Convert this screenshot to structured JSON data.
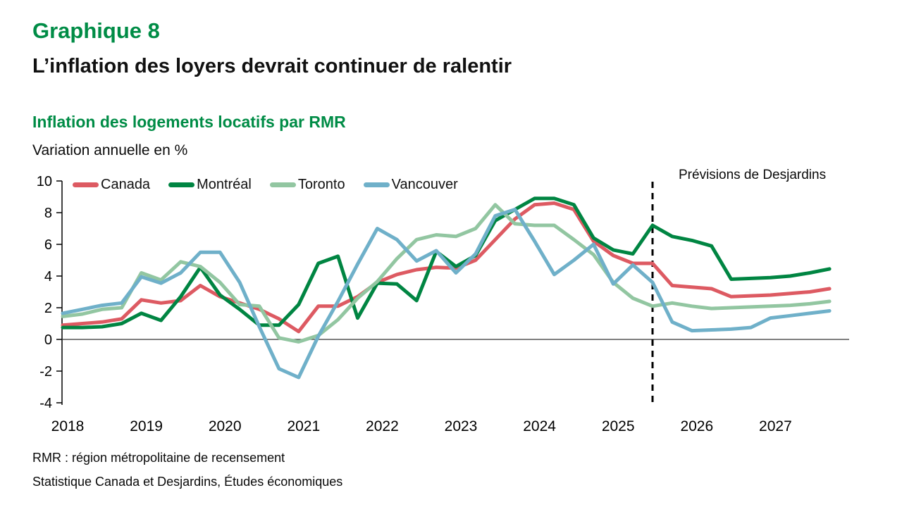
{
  "page": {
    "graph_number": "Graphique 8",
    "headline": "L’inflation des loyers devrait continuer de ralentir",
    "footnotes": [
      "RMR : région métropolitaine de recensement",
      "Statistique Canada et Desjardins, Études économiques"
    ]
  },
  "chart": {
    "title": "Inflation des logements locatifs par RMR",
    "unit_label": "Variation annuelle en %",
    "forecast_label": "Prévisions de Desjardins"
  },
  "colors": {
    "brand_green": "#008C46",
    "canada": "#DD5A62",
    "montreal": "#008542",
    "toronto": "#92C6A1",
    "vancouver": "#6FB0C9",
    "axis": "#000000"
  },
  "chart_data": {
    "type": "line",
    "title": "Inflation des logements locatifs par RMR",
    "ylabel": "Variation annuelle en %",
    "ylim": [
      -4,
      10
    ],
    "y_ticks": [
      10,
      8,
      6,
      4,
      2,
      0,
      -2,
      -4
    ],
    "x_years": [
      2018,
      2019,
      2020,
      2021,
      2022,
      2023,
      2024,
      2025,
      2026,
      2027
    ],
    "frequency": "quarterly",
    "grid": false,
    "legend_position": "top-left",
    "zero_line": true,
    "forecast_divider": {
      "position": "2025-Q3",
      "index": 30,
      "style": "dashed"
    },
    "series": [
      {
        "name": "Canada",
        "color": "#DD5A62",
        "values": [
          0.9,
          1.0,
          1.1,
          1.3,
          2.5,
          2.3,
          2.45,
          3.4,
          2.7,
          2.3,
          1.9,
          1.3,
          0.5,
          2.1,
          2.1,
          2.7,
          3.6,
          4.1,
          4.4,
          4.55,
          4.5,
          5.0,
          6.3,
          7.6,
          8.5,
          8.6,
          8.2,
          6.2,
          5.3,
          4.8,
          4.8,
          3.4,
          3.3,
          3.2,
          2.7,
          2.75,
          2.8,
          2.9,
          3.0,
          3.2
        ]
      },
      {
        "name": "Montréal",
        "color": "#008542",
        "values": [
          0.75,
          0.75,
          0.8,
          1.0,
          1.65,
          1.2,
          2.7,
          4.55,
          2.8,
          1.9,
          0.9,
          0.9,
          2.2,
          4.8,
          5.25,
          1.35,
          3.55,
          3.5,
          2.45,
          5.55,
          4.6,
          5.3,
          7.5,
          8.2,
          8.9,
          8.9,
          8.5,
          6.4,
          5.65,
          5.4,
          7.2,
          6.5,
          6.25,
          5.9,
          3.8,
          3.85,
          3.9,
          4.0,
          4.2,
          4.45
        ]
      },
      {
        "name": "Toronto",
        "color": "#92C6A1",
        "values": [
          1.45,
          1.6,
          1.9,
          2.0,
          4.2,
          3.75,
          4.9,
          4.6,
          3.6,
          2.2,
          2.1,
          0.1,
          -0.15,
          0.25,
          1.25,
          2.6,
          3.65,
          5.1,
          6.3,
          6.6,
          6.5,
          7.0,
          8.5,
          7.3,
          7.2,
          7.2,
          6.3,
          5.35,
          3.6,
          2.6,
          2.1,
          2.3,
          2.1,
          1.95,
          2.0,
          2.05,
          2.1,
          2.15,
          2.25,
          2.4
        ]
      },
      {
        "name": "Vancouver",
        "color": "#6FB0C9",
        "values": [
          1.65,
          1.9,
          2.15,
          2.3,
          3.95,
          3.55,
          4.2,
          5.5,
          5.5,
          3.6,
          0.8,
          -1.85,
          -2.4,
          0.2,
          2.4,
          4.75,
          7.0,
          6.3,
          4.95,
          5.6,
          4.2,
          5.4,
          7.8,
          8.2,
          6.2,
          4.1,
          5.0,
          6.0,
          3.5,
          4.7,
          3.6,
          1.1,
          0.55,
          0.6,
          0.65,
          0.75,
          1.35,
          1.5,
          1.65,
          1.8
        ]
      }
    ]
  }
}
